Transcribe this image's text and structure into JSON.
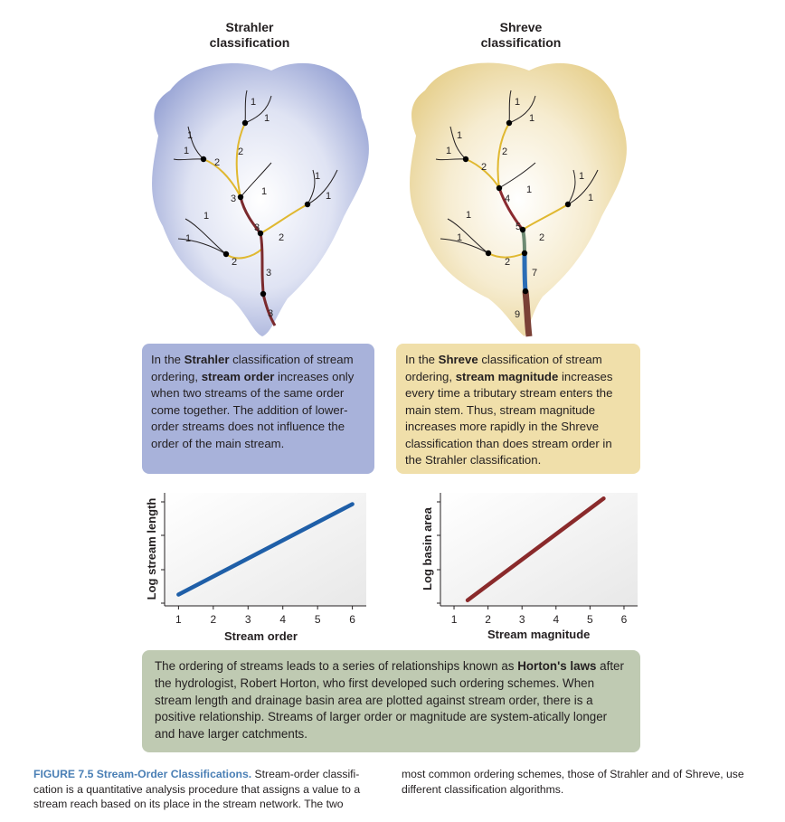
{
  "strahler": {
    "title_line1": "Strahler",
    "title_line2": "classification",
    "orders": [
      "1",
      "1",
      "1",
      "1",
      "2",
      "2",
      "3",
      "1",
      "1",
      "1",
      "3",
      "2",
      "1",
      "1",
      "2",
      "3",
      "3"
    ],
    "description": {
      "part1": "In the ",
      "bold1": "Strahler",
      "part2": " classification of stream ordering, ",
      "bold2": "stream order",
      "part3": " increases only when two streams of the same order come together. The addition of lower-order streams does not influence the order of the main stream."
    }
  },
  "shreve": {
    "title_line1": "Shreve",
    "title_line2": "classification",
    "magnitudes": [
      "1",
      "1",
      "1",
      "1",
      "2",
      "2",
      "4",
      "1",
      "1",
      "1",
      "5",
      "2",
      "1",
      "1",
      "2",
      "7",
      "9"
    ],
    "description": {
      "part1": "In the ",
      "bold1": "Shreve",
      "part2": " classification of stream ordering, ",
      "bold2": "stream magnitude",
      "part3": " increases every time a tributary stream enters the main stem. Thus, stream magnitude increases more rapidly in the Shreve classification than does stream order in the Strahler classification."
    }
  },
  "chart_data": [
    {
      "type": "line",
      "xlabel": "Stream order",
      "ylabel": "Log stream length",
      "x_ticks": [
        "1",
        "2",
        "3",
        "4",
        "5",
        "6"
      ],
      "xlim": [
        0.6,
        6.4
      ],
      "series": [
        {
          "x": [
            1,
            6
          ],
          "y": [
            0.1,
            0.9
          ]
        }
      ],
      "color": "#1f5fa8"
    },
    {
      "type": "line",
      "xlabel": "Stream magnitude",
      "ylabel": "Log basin area",
      "x_ticks": [
        "1",
        "2",
        "3",
        "4",
        "5",
        "6"
      ],
      "xlim": [
        0.6,
        6.4
      ],
      "series": [
        {
          "x": [
            1.4,
            5.4
          ],
          "y": [
            0.05,
            0.95
          ]
        }
      ],
      "color": "#8a2a2b"
    }
  ],
  "horton": {
    "part1": "The ordering of streams leads to a series of relationships known as ",
    "bold": "Horton's laws",
    "part2": " after the hydrologist, Robert Horton, who first developed such ordering schemes. When stream length and drainage basin area are plotted against stream order, there is a positive relationship. Streams of larger order or magnitude are system-atically longer and have larger catchments."
  },
  "caption": {
    "figure_label": "FIGURE 7.5  Stream-Order Classifications.",
    "left_text": " Stream-order classifi-cation is a quantitative analysis procedure that assigns a value to a stream reach based on its place in the stream network. The two",
    "right_text": "most common ordering schemes, those of Strahler and of Shreve, use different classification algorithms."
  },
  "colors": {
    "strahler_basin": "#a9b3dc",
    "shreve_basin": "#ecd9a4",
    "strahler_box": "#a8b2da",
    "shreve_box": "#f0dfaa",
    "horton_box": "#bfcab2",
    "order2": "#e0b830",
    "order3": "#7b2a2e",
    "mag4": "#8a2a2f",
    "mag5": "#6e8a72",
    "mag7": "#2b6db5",
    "mag9": "#7a4036"
  }
}
